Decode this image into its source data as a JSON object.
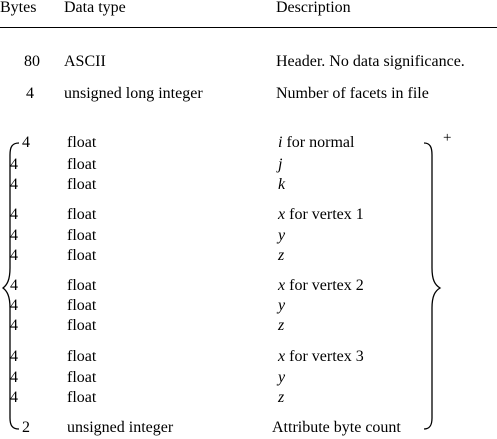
{
  "headers": {
    "bytes": "Bytes",
    "type": "Data type",
    "desc": "Description"
  },
  "rows": [
    {
      "bytes": "80",
      "type": "ASCII",
      "desc": "Header. No data significance."
    },
    {
      "bytes": "4",
      "type": "unsigned long integer",
      "desc": "Number of facets in file"
    }
  ],
  "facet_rows": [
    {
      "bytes": "4",
      "type": "float",
      "desc_italic": "i",
      "desc_rest": " for normal"
    },
    {
      "bytes": "4",
      "type": "float",
      "desc_italic": "j",
      "desc_rest": ""
    },
    {
      "bytes": "4",
      "type": "float",
      "desc_italic": "k",
      "desc_rest": ""
    },
    {
      "bytes": "4",
      "type": "float",
      "desc_italic": "x",
      "desc_rest": " for vertex 1"
    },
    {
      "bytes": "4",
      "type": "float",
      "desc_italic": "y",
      "desc_rest": ""
    },
    {
      "bytes": "4",
      "type": "float",
      "desc_italic": "z",
      "desc_rest": ""
    },
    {
      "bytes": "4",
      "type": "float",
      "desc_italic": "x",
      "desc_rest": " for vertex 2"
    },
    {
      "bytes": "4",
      "type": "float",
      "desc_italic": "y",
      "desc_rest": ""
    },
    {
      "bytes": "4",
      "type": "float",
      "desc_italic": "z",
      "desc_rest": ""
    },
    {
      "bytes": "4",
      "type": "float",
      "desc_italic": "x",
      "desc_rest": " for vertex 3"
    },
    {
      "bytes": "4",
      "type": "float",
      "desc_italic": "y",
      "desc_rest": ""
    },
    {
      "bytes": "4",
      "type": "float",
      "desc_italic": "z",
      "desc_rest": ""
    },
    {
      "bytes": "2",
      "type": "unsigned integer",
      "desc_italic": "",
      "desc_rest": "Attribute byte count"
    }
  ],
  "repeat_marker": "+"
}
